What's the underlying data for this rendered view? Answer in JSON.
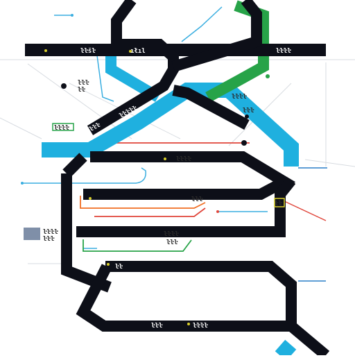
{
  "colors": {
    "track_main": "#0d0f18",
    "track_cyan": "#1fb0df",
    "track_green": "#27a348",
    "track_orange": "#f06d22",
    "accent_red": "#e0453a",
    "thin_cyan": "#3aaee0",
    "thin_blue": "#2a7fc8",
    "grid": "#d7dbe0",
    "legend_swatch": "#7f8fa8",
    "station_yellow": "#d9cf2a"
  },
  "labels": {
    "top_bar_mid": "ıłıl",
    "top_bar_left": "ŀŀšŀ",
    "top_bar_right": "ŀŀŀŀ",
    "diag_black": "ŀŀŀŀŀ",
    "diag_cyan": "ŀŀŀŀ",
    "side_small_1": "ŀŀŀ",
    "side_small_2": "ŀŀ",
    "green_box": "ŀŀŀŀ",
    "mid_right_1": "ŀŀŀŀ",
    "mid_right_2": "ŀŀŀ",
    "row_upper": "ŀŀŀŀ",
    "row_orange": "ŀŀŀ",
    "row_red": "ŀŀŀŀ",
    "row_green": "ŀŀŀ",
    "loop_right": "ŀŀ",
    "lower_left": "ŀŀ",
    "bottom_1": "ŀŀŀ",
    "bottom_2": "ŀŀŀŀ",
    "legend_1": "ŀŀŀŀ",
    "legend_2": "ŀŀŀ"
  }
}
